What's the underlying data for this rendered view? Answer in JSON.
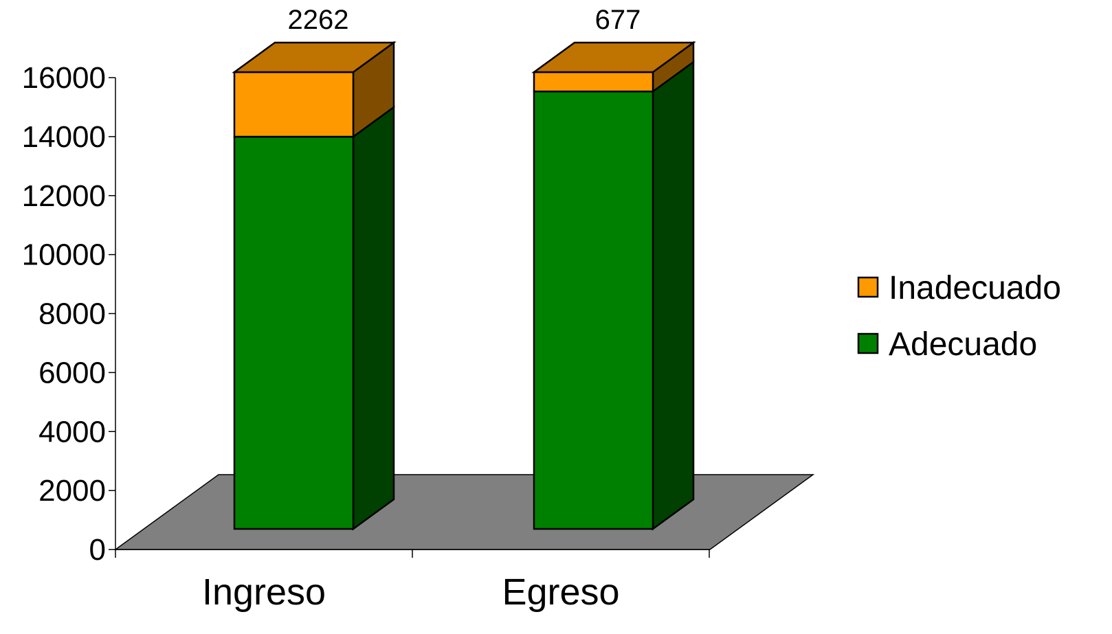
{
  "chart_data": {
    "type": "bar",
    "stacked": true,
    "three_d": true,
    "categories": [
      "Ingreso",
      "Egreso"
    ],
    "series": [
      {
        "name": "Adecuado",
        "values": [
          13738,
          15323
        ],
        "color": "#008000"
      },
      {
        "name": "Inadecuado",
        "values": [
          2262,
          677
        ],
        "color": "#FF9900"
      }
    ],
    "data_labels": [
      "2262",
      "677"
    ],
    "y_ticks": [
      "0",
      "2000",
      "4000",
      "6000",
      "8000",
      "10000",
      "12000",
      "14000",
      "16000"
    ],
    "ylim": [
      0,
      16000
    ],
    "legend_position": "right",
    "floor_color": "#808080",
    "grid": false
  }
}
